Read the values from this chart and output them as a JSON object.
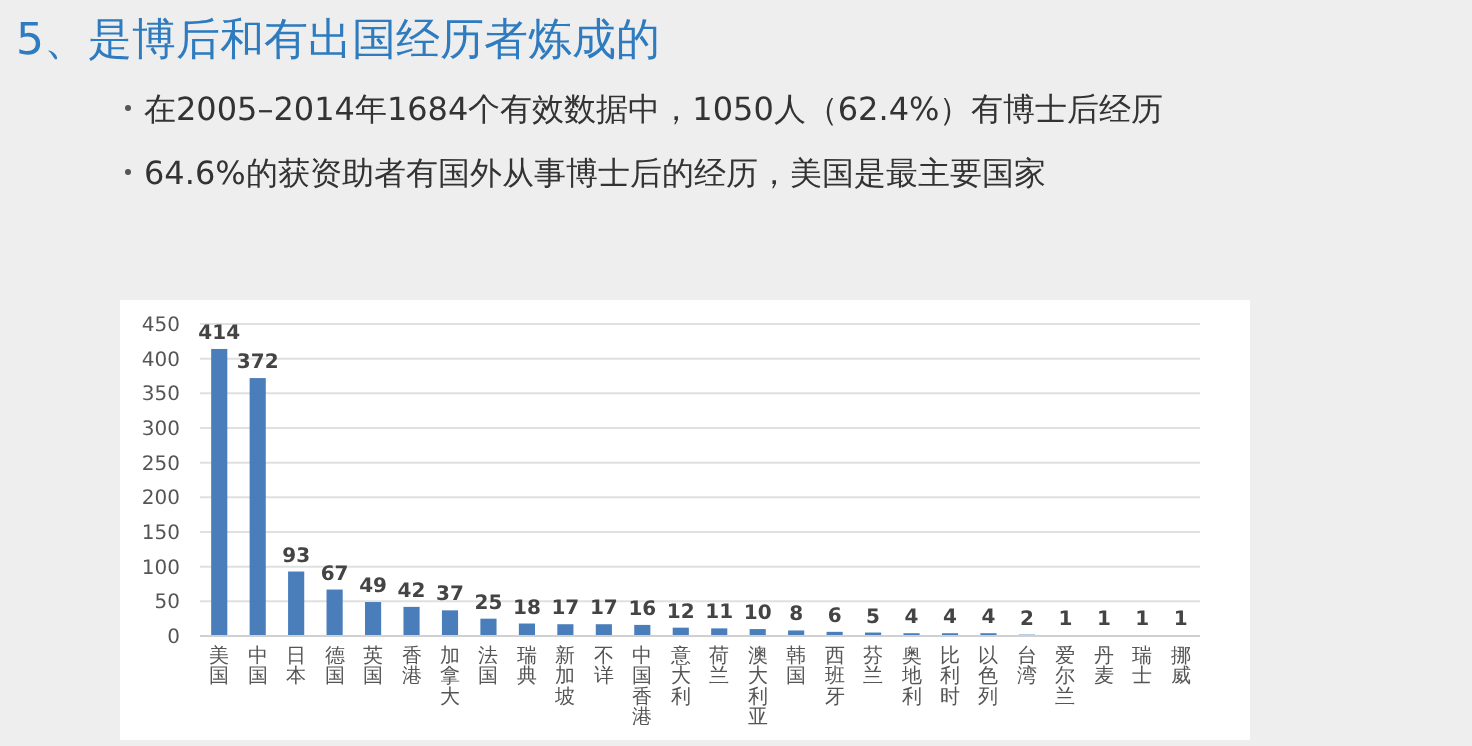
{
  "chart_data": {
    "type": "bar",
    "title": "5、是博后和有出国经历者炼成的",
    "annotations": [
      "在2005–2014年1684个有效数据中，1050人（62.4%）有博士后经历",
      "64.6%的获资助者有国外从事博士后的经历，美国是最主要国家"
    ],
    "categories": [
      "美国",
      "中国",
      "日本",
      "德国",
      "英国",
      "香港",
      "加拿大",
      "法国",
      "瑞典",
      "新加坡",
      "不详",
      "中国香港",
      "意大利",
      "荷兰",
      "澳大利亚",
      "韩国",
      "西班牙",
      "芬兰",
      "奥地利",
      "比利时",
      "以色列",
      "台湾",
      "爱尔兰",
      "丹麦",
      "瑞士",
      "挪威"
    ],
    "values": [
      414,
      372,
      93,
      67,
      49,
      42,
      37,
      25,
      18,
      17,
      17,
      16,
      12,
      11,
      10,
      8,
      6,
      5,
      4,
      4,
      4,
      2,
      1,
      1,
      1,
      1
    ],
    "color": "#4a7ebb",
    "ylim": [
      0,
      450
    ],
    "yticks": [
      0,
      50,
      100,
      150,
      200,
      250,
      300,
      350,
      400,
      450
    ],
    "grid": "y",
    "data_labels": true
  }
}
